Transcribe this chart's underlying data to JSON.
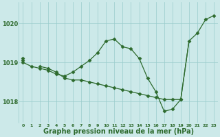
{
  "xlabel": "Graphe pression niveau de la mer (hPa)",
  "hours": [
    0,
    1,
    2,
    3,
    4,
    5,
    6,
    7,
    8,
    9,
    10,
    11,
    12,
    13,
    14,
    15,
    16,
    17,
    18,
    19,
    20,
    21,
    22,
    23
  ],
  "line1": [
    1019.0,
    1018.9,
    1018.85,
    1018.8,
    1018.7,
    1018.65,
    1018.75,
    1018.9,
    1019.05,
    1019.25,
    1019.55,
    1019.6,
    1019.4,
    1019.35,
    1019.1,
    1018.6,
    1018.25,
    1017.75,
    1017.8,
    1018.05,
    null,
    null,
    null,
    null
  ],
  "line2": [
    1019.05,
    null,
    null,
    null,
    null,
    null,
    null,
    null,
    null,
    null,
    null,
    null,
    null,
    null,
    null,
    null,
    null,
    null,
    null,
    null,
    1019.55,
    1019.75,
    1020.1,
    1020.2
  ],
  "line3": [
    1019.1,
    null,
    1018.9,
    1018.85,
    1018.75,
    1018.6,
    1018.55,
    1018.55,
    1018.5,
    1018.45,
    1018.4,
    1018.35,
    1018.3,
    1018.25,
    1018.2,
    1018.15,
    1018.1,
    1018.05,
    1018.05,
    1018.05,
    null,
    null,
    null,
    null
  ],
  "bg_color": "#cce9e9",
  "grid_color": "#99cccc",
  "line_color": "#2d6a2d",
  "tick_label_color": "#2d6a2d",
  "ylim_min": 1017.45,
  "ylim_max": 1020.55,
  "yticks": [
    1018,
    1019,
    1020
  ],
  "fontsize_xlabel": 7,
  "marker": "D",
  "markersize": 2.5,
  "linewidth": 0.9
}
